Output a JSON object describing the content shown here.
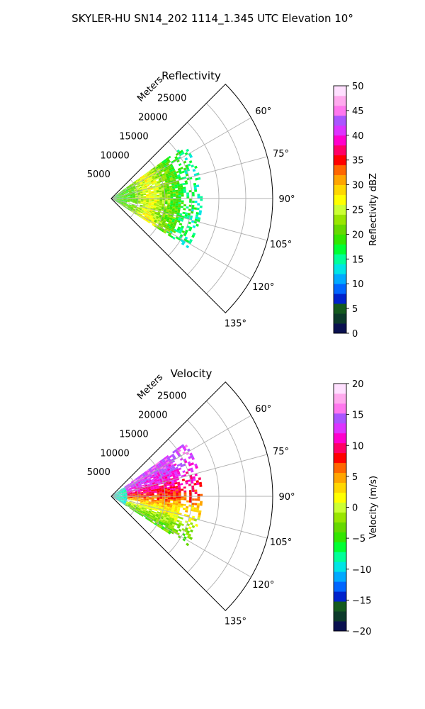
{
  "figure": {
    "title": "SKYLER-HU  SN14_202  1114_1.345 UTC Elevation 10°"
  },
  "chart_data": [
    {
      "type": "heatmap",
      "subtype": "polar-sector (radar PPI)",
      "title": "Reflectivity",
      "radial_axis_label": "Meters",
      "radial_ticks": [
        5000,
        10000,
        15000,
        20000,
        25000
      ],
      "radial_tick_labels": [
        "5000",
        "10000",
        "15000",
        "20000",
        "25000"
      ],
      "rlim": [
        0,
        30000
      ],
      "theta_range_deg": [
        45,
        135
      ],
      "theta_ticks": [
        60,
        75,
        90,
        105,
        120,
        135
      ],
      "theta_tick_labels": [
        "60°",
        "75°",
        "90°",
        "105°",
        "120°",
        "135°"
      ],
      "grid": true,
      "data_extent": {
        "theta_deg": [
          54,
          122
        ],
        "range_m": [
          0,
          17000
        ]
      },
      "colorbar": {
        "label": "Reflectivity dBZ",
        "vmin": 0,
        "vmax": 50,
        "ticks": [
          0,
          5,
          10,
          15,
          20,
          25,
          30,
          35,
          40,
          45,
          50
        ],
        "tick_labels": [
          "0",
          "5",
          "10",
          "15",
          "20",
          "25",
          "30",
          "35",
          "40",
          "45",
          "50"
        ],
        "colors": [
          "#0a1150",
          "#0c3a2a",
          "#145a1e",
          "#0022cc",
          "#0066ff",
          "#00aaff",
          "#00e5e5",
          "#00ff99",
          "#00ff33",
          "#33e600",
          "#66d900",
          "#99e600",
          "#ccff33",
          "#ffff00",
          "#ffd700",
          "#ffa500",
          "#ff6600",
          "#ff0000",
          "#ff0066",
          "#ff00cc",
          "#dd33ff",
          "#aa55ff",
          "#ff77ee",
          "#ffaaee",
          "#ffe0ff"
        ]
      },
      "value_profile": [
        {
          "range_m": 0,
          "value": 18
        },
        {
          "range_m": 4000,
          "value": 21
        },
        {
          "range_m": 7000,
          "value": 27
        },
        {
          "range_m": 10000,
          "value": 22
        },
        {
          "range_m": 13000,
          "value": 18
        },
        {
          "range_m": 16000,
          "value": 15
        }
      ]
    },
    {
      "type": "heatmap",
      "subtype": "polar-sector (radar PPI)",
      "title": "Velocity",
      "radial_axis_label": "Meters",
      "radial_ticks": [
        5000,
        10000,
        15000,
        20000,
        25000
      ],
      "radial_tick_labels": [
        "5000",
        "10000",
        "15000",
        "20000",
        "25000"
      ],
      "rlim": [
        0,
        30000
      ],
      "theta_range_deg": [
        45,
        135
      ],
      "theta_ticks": [
        60,
        75,
        90,
        105,
        120,
        135
      ],
      "theta_tick_labels": [
        "60°",
        "75°",
        "90°",
        "105°",
        "120°",
        "135°"
      ],
      "grid": true,
      "data_extent": {
        "theta_deg": [
          54,
          122
        ],
        "range_m": [
          0,
          17000
        ]
      },
      "colorbar": {
        "label": "Velocity (m/s)",
        "vmin": -20,
        "vmax": 20,
        "ticks": [
          -20,
          -15,
          -10,
          -5,
          0,
          5,
          10,
          15,
          20
        ],
        "tick_labels": [
          "−20",
          "−15",
          "−10",
          "−5",
          "0",
          "5",
          "10",
          "15",
          "20"
        ],
        "colors": [
          "#0a1150",
          "#0c3a2a",
          "#145a1e",
          "#0022cc",
          "#0066ff",
          "#00aaff",
          "#00e5e5",
          "#00ff99",
          "#00ff33",
          "#33e600",
          "#66d900",
          "#99e600",
          "#ccff33",
          "#ffff00",
          "#ffd700",
          "#ffa500",
          "#ff6600",
          "#ff0000",
          "#ff0066",
          "#ff00cc",
          "#dd33ff",
          "#aa55ff",
          "#ff77ee",
          "#ffaaee",
          "#ffe0ff"
        ]
      },
      "value_profile": [
        {
          "theta_deg": 60,
          "value": 14
        },
        {
          "theta_deg": 75,
          "value": 11
        },
        {
          "theta_deg": 90,
          "value": 7
        },
        {
          "theta_deg": 105,
          "value": 1
        },
        {
          "theta_deg": 120,
          "value": -4
        }
      ]
    }
  ]
}
